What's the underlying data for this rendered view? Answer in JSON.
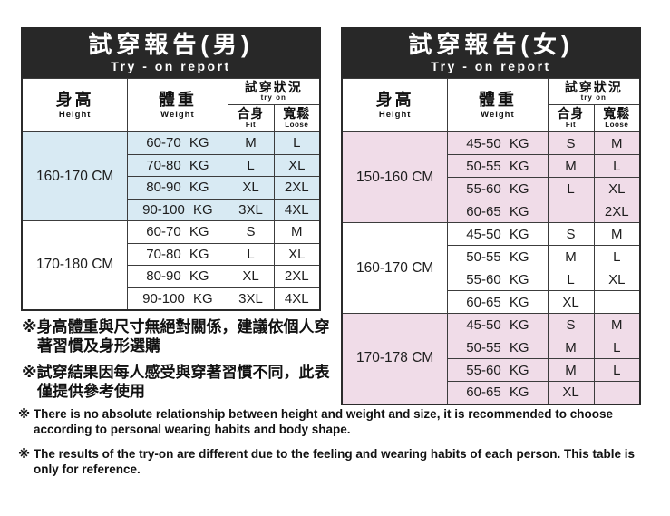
{
  "colors": {
    "header_bg": "#282828",
    "header_text": "#ffffff",
    "men_highlight": "#d8eaf3",
    "women_highlight": "#f0dce8",
    "border": "#3c3c3c"
  },
  "tables": [
    {
      "id": "men",
      "title": "試穿報告(男)",
      "subtitle": "Try - on report",
      "columns": {
        "height_zh": "身高",
        "height_en": "Height",
        "weight_zh": "體重",
        "weight_en": "Weight",
        "tryon_zh": "試穿狀況",
        "tryon_en": "try on",
        "fit_zh": "合身",
        "fit_en": "Fit",
        "loose_zh": "寬鬆",
        "loose_en": "Loose"
      },
      "groups": [
        {
          "height": "160-170 CM",
          "highlighted": true,
          "rows": [
            {
              "weight": "60-70 KG",
              "fit": "M",
              "loose": "L"
            },
            {
              "weight": "70-80 KG",
              "fit": "L",
              "loose": "XL"
            },
            {
              "weight": "80-90 KG",
              "fit": "XL",
              "loose": "2XL"
            },
            {
              "weight": "90-100 KG",
              "fit": "3XL",
              "loose": "4XL"
            }
          ]
        },
        {
          "height": "170-180 CM",
          "highlighted": false,
          "rows": [
            {
              "weight": "60-70 KG",
              "fit": "S",
              "loose": "M"
            },
            {
              "weight": "70-80 KG",
              "fit": "L",
              "loose": "XL"
            },
            {
              "weight": "80-90 KG",
              "fit": "XL",
              "loose": "2XL"
            },
            {
              "weight": "90-100 KG",
              "fit": "3XL",
              "loose": "4XL"
            }
          ]
        }
      ]
    },
    {
      "id": "women",
      "title": "試穿報告(女)",
      "subtitle": "Try - on report",
      "columns": {
        "height_zh": "身高",
        "height_en": "Height",
        "weight_zh": "體重",
        "weight_en": "Weight",
        "tryon_zh": "試穿狀況",
        "tryon_en": "try on",
        "fit_zh": "合身",
        "fit_en": "Fit",
        "loose_zh": "寬鬆",
        "loose_en": "Loose"
      },
      "groups": [
        {
          "height": "150-160 CM",
          "highlighted": true,
          "rows": [
            {
              "weight": "45-50 KG",
              "fit": "S",
              "loose": "M"
            },
            {
              "weight": "50-55 KG",
              "fit": "M",
              "loose": "L"
            },
            {
              "weight": "55-60 KG",
              "fit": "L",
              "loose": "XL"
            },
            {
              "weight": "60-65 KG",
              "fit": "",
              "loose": "2XL"
            }
          ]
        },
        {
          "height": "160-170 CM",
          "highlighted": false,
          "rows": [
            {
              "weight": "45-50 KG",
              "fit": "S",
              "loose": "M"
            },
            {
              "weight": "50-55 KG",
              "fit": "M",
              "loose": "L"
            },
            {
              "weight": "55-60 KG",
              "fit": "L",
              "loose": "XL"
            },
            {
              "weight": "60-65 KG",
              "fit": "XL",
              "loose": ""
            }
          ]
        },
        {
          "height": "170-178 CM",
          "highlighted": true,
          "rows": [
            {
              "weight": "45-50 KG",
              "fit": "S",
              "loose": "M"
            },
            {
              "weight": "50-55 KG",
              "fit": "M",
              "loose": "L"
            },
            {
              "weight": "55-60 KG",
              "fit": "M",
              "loose": "L"
            },
            {
              "weight": "60-65 KG",
              "fit": "XL",
              "loose": ""
            }
          ]
        }
      ]
    }
  ],
  "notes_zh": [
    "※身高體重與尺寸無絕對關係，建議依個人穿著習慣及身形選購",
    "※試穿結果因每人感受與穿著習慣不同，此表僅提供參考使用"
  ],
  "notes_en": [
    "※ There is no absolute relationship between height and weight and size, it is recommended to choose according to personal wearing habits and body shape.",
    "※ The results of the try-on are different due to the feeling and wearing habits of each person. This table is only for reference."
  ]
}
